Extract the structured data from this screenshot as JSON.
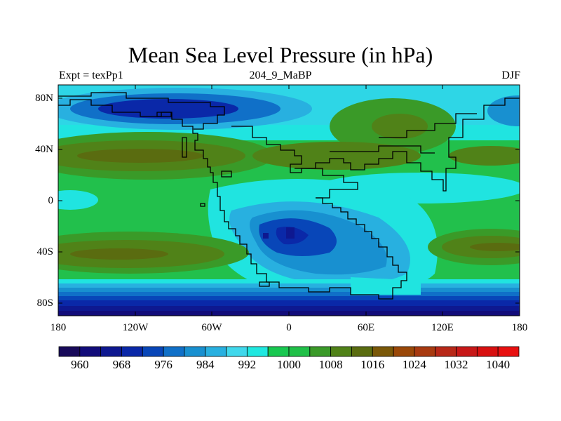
{
  "title": "Mean Sea Level Pressure (in hPa)",
  "subtitle_left": "Expt = texPp1",
  "subtitle_center": "204_9_MaBP",
  "subtitle_right": "DJF",
  "lat_ticks": [
    "80N",
    "40N",
    "0",
    "40S",
    "80S"
  ],
  "lon_ticks": [
    "180",
    "120W",
    "60W",
    "0",
    "60E",
    "120E",
    "180"
  ],
  "colorbar": {
    "labels": [
      "960",
      "968",
      "976",
      "984",
      "992",
      "1000",
      "1008",
      "1016",
      "1024",
      "1032",
      "1040"
    ],
    "colors": [
      "#180a5a",
      "#120c7a",
      "#0e1890",
      "#0a28a8",
      "#0846b8",
      "#1070c8",
      "#1890d0",
      "#28b0e0",
      "#40d8ec",
      "#20e8e0",
      "#18c850",
      "#20c048",
      "#3a9a28",
      "#508218",
      "#5a6c10",
      "#7a5808",
      "#9a4808",
      "#a83a10",
      "#b82818",
      "#c81818",
      "#d81010",
      "#e81010"
    ],
    "start_value": 956,
    "step": 4
  },
  "map": {
    "background": "#22c04c",
    "coast_color": "#000000"
  }
}
